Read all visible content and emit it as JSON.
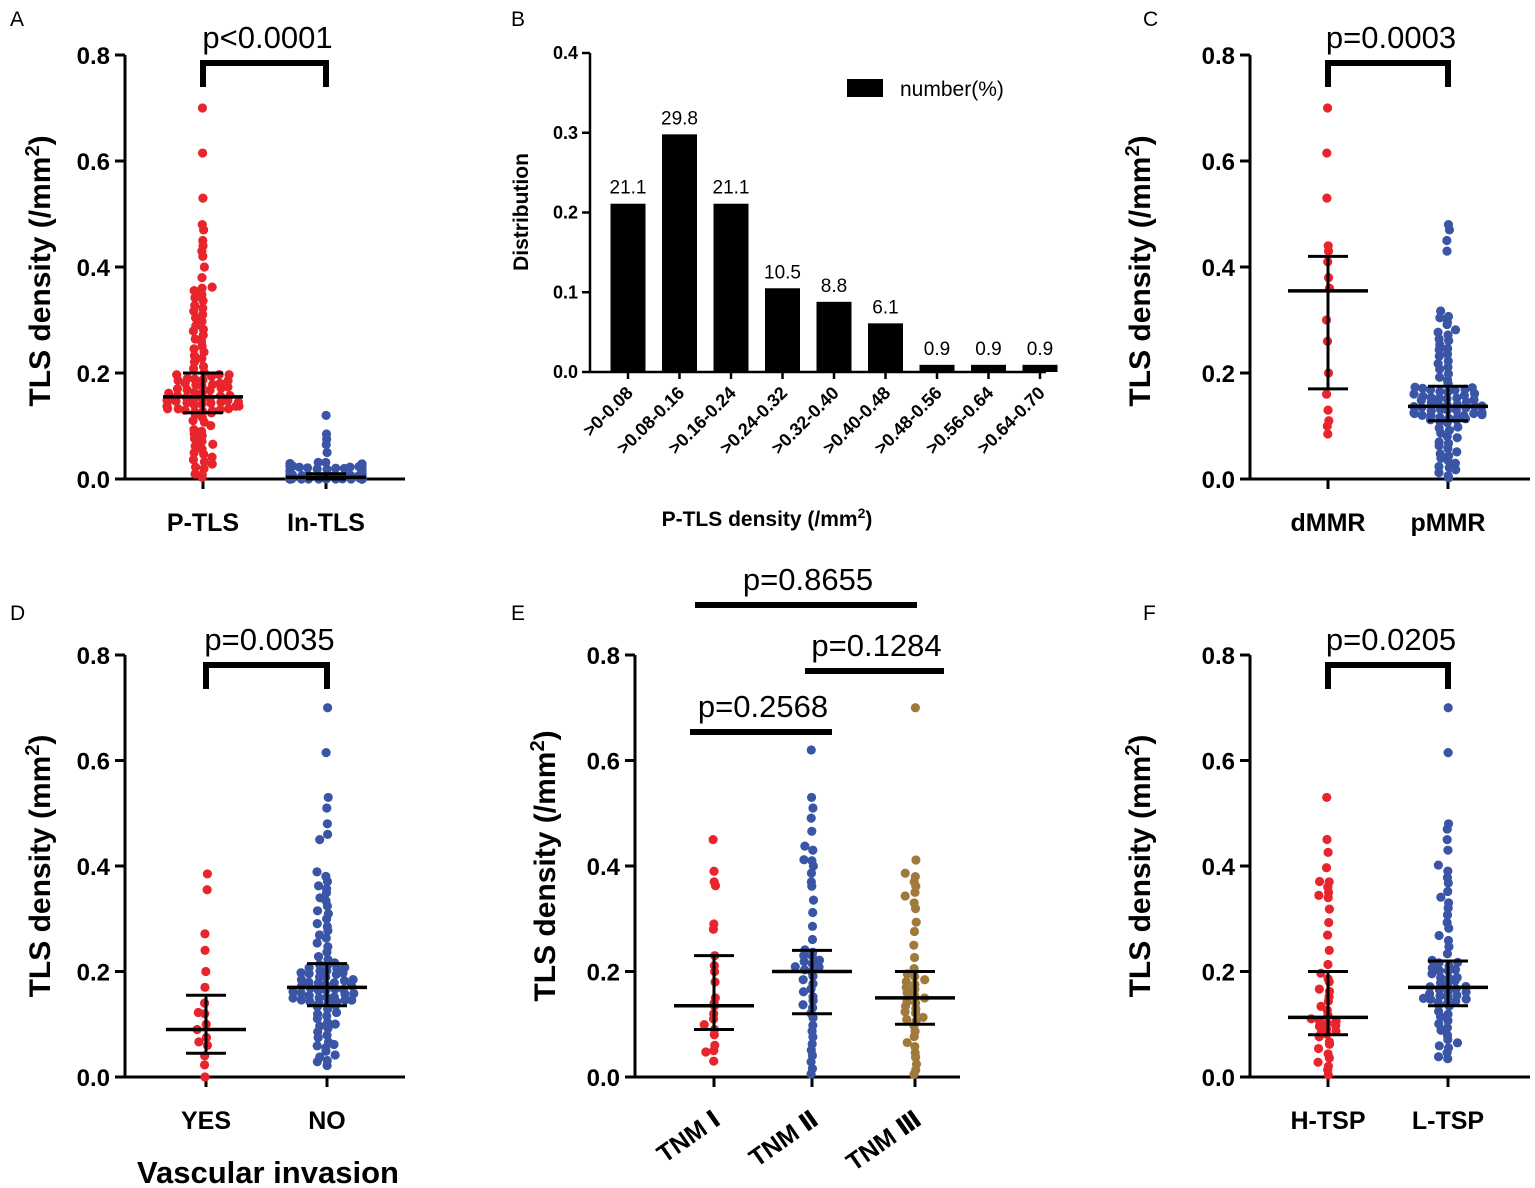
{
  "colors": {
    "red": "#e8242c",
    "blue": "#3a55a5",
    "brown": "#a07a3c",
    "black": "#000000"
  },
  "panels": {
    "A": {
      "label": "A",
      "ylabel_main": "TLS density (/mm",
      "ylabel_sup": "2",
      "ylabel_close": ")",
      "yticks": [
        "0.0",
        "0.2",
        "0.4",
        "0.6",
        "0.8"
      ],
      "groups": [
        "P-TLS",
        "In-TLS"
      ],
      "comparisons": [
        {
          "text": "p<0.0001",
          "from": 0,
          "to": 1
        }
      ]
    },
    "B": {
      "label": "B",
      "ylabel": "Distribution",
      "xlabel_main": "P-TLS density (/mm",
      "xlabel_sup": "2",
      "xlabel_close": ")",
      "yticks": [
        "0.0",
        "0.1",
        "0.2",
        "0.3",
        "0.4"
      ],
      "legend": "number(%)"
    },
    "C": {
      "label": "C",
      "ylabel_main": "TLS density (/mm",
      "ylabel_sup": "2",
      "ylabel_close": ")",
      "yticks": [
        "0.0",
        "0.2",
        "0.4",
        "0.6",
        "0.8"
      ],
      "groups": [
        "dMMR",
        "pMMR"
      ],
      "comparisons": [
        {
          "text": "p=0.0003",
          "from": 0,
          "to": 1
        }
      ]
    },
    "D": {
      "label": "D",
      "ylabel_main": "TLS density (mm",
      "ylabel_sup": "2",
      "ylabel_close": ")",
      "yticks": [
        "0.0",
        "0.2",
        "0.4",
        "0.6",
        "0.8"
      ],
      "groups": [
        "YES",
        "NO"
      ],
      "xtitle": "Vascular invasion",
      "comparisons": [
        {
          "text": "p=0.0035",
          "from": 0,
          "to": 1
        }
      ]
    },
    "E": {
      "label": "E",
      "ylabel_main": "TLS density (/mm",
      "ylabel_sup": "2",
      "ylabel_close": ")",
      "yticks": [
        "0.0",
        "0.2",
        "0.4",
        "0.6",
        "0.8"
      ],
      "groups": [
        "TNM Ⅰ",
        "TNM Ⅱ",
        "TNM Ⅲ"
      ],
      "comparisons": [
        {
          "text": "p=0.8655",
          "from": 0,
          "to": 2
        },
        {
          "text": "p=0.1284",
          "from": 1,
          "to": 2
        },
        {
          "text": "p=0.2568",
          "from": 0,
          "to": 1
        }
      ]
    },
    "F": {
      "label": "F",
      "ylabel_main": "TLS density (mm",
      "ylabel_sup": "2",
      "ylabel_close": ")",
      "yticks": [
        "0.0",
        "0.2",
        "0.4",
        "0.6",
        "0.8"
      ],
      "groups": [
        "H-TSP",
        "L-TSP"
      ],
      "comparisons": [
        {
          "text": "p=0.0205",
          "from": 0,
          "to": 1
        }
      ]
    }
  },
  "chart_data": [
    {
      "panel": "A",
      "type": "scatter",
      "ylabel": "TLS density (/mm2)",
      "ylim": [
        0,
        0.8
      ],
      "series": [
        {
          "name": "P-TLS",
          "color": "red",
          "n": 114,
          "median": 0.155,
          "q1": 0.125,
          "q3": 0.2,
          "min": 0.0,
          "max": 0.7,
          "highlights": [
            0.7,
            0.615,
            0.53,
            0.48,
            0.47,
            0.45,
            0.44,
            0.43,
            0.42,
            0.4,
            0.38,
            0.36
          ]
        },
        {
          "name": "In-TLS",
          "color": "blue",
          "n": 114,
          "median": 0.003,
          "q1": 0.0,
          "q3": 0.01,
          "min": 0.0,
          "max": 0.12,
          "highlights": [
            0.12,
            0.085,
            0.075,
            0.065,
            0.05
          ]
        }
      ]
    },
    {
      "panel": "B",
      "type": "bar",
      "title": "",
      "ylabel": "Distribution",
      "xlabel": "P-TLS density (/mm2)",
      "ylim": [
        0,
        0.4
      ],
      "legend": "number(%)",
      "categories": [
        ">0-0.08",
        ">0.08-0.16",
        ">0.16-0.24",
        ">0.24-0.32",
        ">0.32-0.40",
        ">0.40-0.48",
        ">0.48-0.56",
        ">0.56-0.64",
        ">0.64-0.70"
      ],
      "values": [
        0.211,
        0.298,
        0.211,
        0.105,
        0.088,
        0.061,
        0.009,
        0.009,
        0.009
      ],
      "data_labels": [
        "21.1",
        "29.8",
        "21.1",
        "10.5",
        "8.8",
        "6.1",
        "0.9",
        "0.9",
        "0.9"
      ]
    },
    {
      "panel": "C",
      "type": "scatter",
      "ylabel": "TLS density (/mm2)",
      "ylim": [
        0,
        0.8
      ],
      "series": [
        {
          "name": "dMMR",
          "color": "red",
          "n": 16,
          "median": 0.355,
          "q1": 0.17,
          "q3": 0.42,
          "min": 0.085,
          "max": 0.7,
          "highlights": [
            0.7,
            0.615,
            0.53,
            0.44,
            0.43,
            0.41,
            0.38,
            0.36,
            0.3,
            0.26,
            0.2,
            0.16,
            0.13,
            0.11,
            0.1,
            0.085
          ]
        },
        {
          "name": "pMMR",
          "color": "blue",
          "n": 98,
          "median": 0.137,
          "q1": 0.11,
          "q3": 0.175,
          "min": 0.0,
          "max": 0.48,
          "highlights": [
            0.48,
            0.47,
            0.45,
            0.43
          ]
        }
      ]
    },
    {
      "panel": "D",
      "type": "scatter",
      "ylabel": "TLS density (mm2)",
      "xlabel": "Vascular invasion",
      "ylim": [
        0,
        0.8
      ],
      "series": [
        {
          "name": "YES",
          "color": "red",
          "n": 17,
          "median": 0.09,
          "q1": 0.045,
          "q3": 0.155,
          "min": 0.0,
          "max": 0.385,
          "highlights": [
            0.385,
            0.355,
            0.24,
            0.2,
            0.17,
            0.14,
            0.12,
            0.1,
            0.09,
            0.075,
            0.06,
            0.04,
            0.0
          ]
        },
        {
          "name": "NO",
          "color": "blue",
          "n": 97,
          "median": 0.17,
          "q1": 0.135,
          "q3": 0.215,
          "min": 0.02,
          "max": 0.7,
          "highlights": [
            0.7,
            0.615,
            0.53,
            0.51,
            0.48,
            0.46,
            0.45
          ]
        }
      ]
    },
    {
      "panel": "E",
      "type": "scatter",
      "ylabel": "TLS density (/mm2)",
      "ylim": [
        0,
        0.8
      ],
      "series": [
        {
          "name": "TNM Ⅰ",
          "color": "red",
          "n": 22,
          "median": 0.135,
          "q1": 0.09,
          "q3": 0.23,
          "min": 0.02,
          "max": 0.45,
          "highlights": [
            0.45,
            0.39,
            0.37,
            0.29,
            0.28,
            0.23,
            0.2,
            0.18,
            0.15,
            0.14,
            0.12,
            0.11,
            0.09,
            0.08,
            0.06,
            0.05,
            0.03
          ]
        },
        {
          "name": "TNM Ⅱ",
          "color": "blue",
          "n": 48,
          "median": 0.2,
          "q1": 0.12,
          "q3": 0.24,
          "min": 0.0,
          "max": 0.62,
          "highlights": [
            0.62,
            0.53,
            0.51,
            0.43,
            0.41,
            0.4,
            0.37
          ]
        },
        {
          "name": "TNM Ⅲ",
          "color": "brown",
          "n": 44,
          "median": 0.15,
          "q1": 0.1,
          "q3": 0.2,
          "min": 0.0,
          "max": 0.7,
          "highlights": [
            0.7,
            0.38,
            0.37,
            0.35,
            0.33
          ]
        }
      ]
    },
    {
      "panel": "F",
      "type": "scatter",
      "ylabel": "TLS density (mm2)",
      "ylim": [
        0,
        0.8
      ],
      "series": [
        {
          "name": "H-TSP",
          "color": "red",
          "n": 45,
          "median": 0.113,
          "q1": 0.08,
          "q3": 0.2,
          "min": 0.0,
          "max": 0.53,
          "highlights": [
            0.53,
            0.37,
            0.36,
            0.35,
            0.34
          ]
        },
        {
          "name": "L-TSP",
          "color": "blue",
          "n": 69,
          "median": 0.17,
          "q1": 0.135,
          "q3": 0.22,
          "min": 0.03,
          "max": 0.7,
          "highlights": [
            0.7,
            0.615,
            0.48,
            0.47,
            0.45,
            0.43
          ]
        }
      ]
    }
  ]
}
